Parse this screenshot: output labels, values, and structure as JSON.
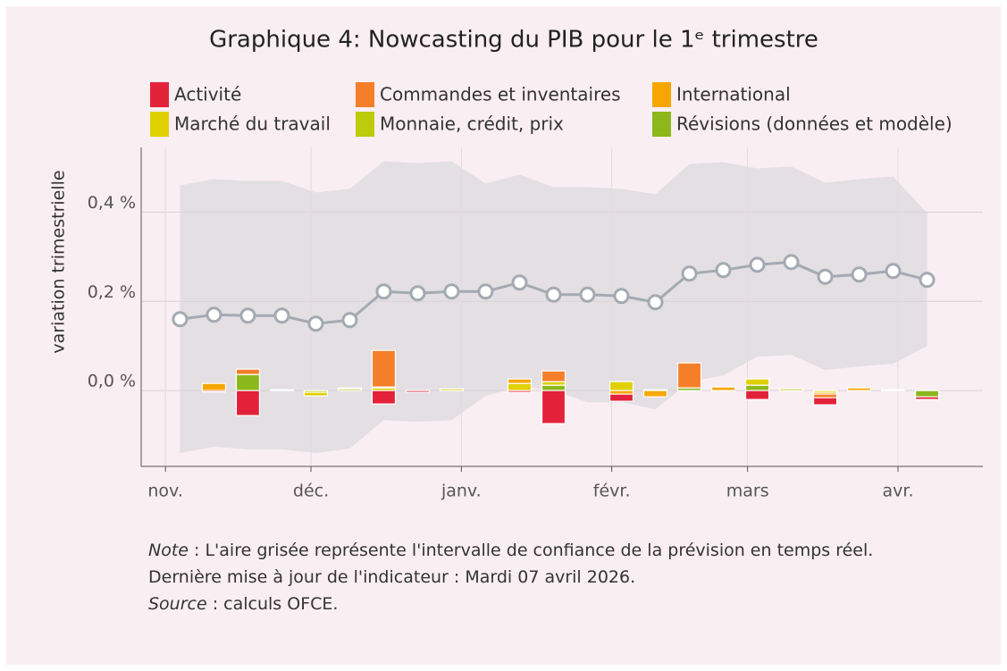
{
  "chart_data": {
    "type": "line",
    "title": "Graphique 4:  Nowcasting du PIB pour le 1ᵉ trimestre",
    "y_label": "variation trimestrielle",
    "x": [
      3,
      10,
      17,
      24,
      31,
      38,
      45,
      52,
      59,
      66,
      73,
      80,
      87,
      94,
      101,
      108,
      115,
      122,
      129,
      136,
      143,
      150,
      157
    ],
    "xlim": [
      -5,
      168.5
    ],
    "xticks": [
      {
        "value": 0,
        "label": "nov."
      },
      {
        "value": 30,
        "label": "déc."
      },
      {
        "value": 61,
        "label": "janv."
      },
      {
        "value": 92,
        "label": "févr."
      },
      {
        "value": 120,
        "label": "mars"
      },
      {
        "value": 151,
        "label": "avr."
      }
    ],
    "ylim": [
      -0.17,
      0.545
    ],
    "yticks": [
      {
        "value": 0,
        "label": "0,0 %"
      },
      {
        "value": 0.2,
        "label": "0,2 %"
      },
      {
        "value": 0.4,
        "label": "0,4 %"
      }
    ],
    "grid": true,
    "line": {
      "color": "#a3aab2",
      "values": [
        0.16,
        0.17,
        0.168,
        0.168,
        0.15,
        0.158,
        0.222,
        0.218,
        0.222,
        0.222,
        0.242,
        0.215,
        0.215,
        0.212,
        0.198,
        0.262,
        0.27,
        0.282,
        0.288,
        0.255,
        0.26,
        0.268,
        0.248
      ]
    },
    "band": {
      "color": "#e3dfe3",
      "upper": [
        0.46,
        0.474,
        0.47,
        0.47,
        0.444,
        0.452,
        0.514,
        0.51,
        0.514,
        0.464,
        0.484,
        0.456,
        0.456,
        0.452,
        0.44,
        0.508,
        0.512,
        0.498,
        0.502,
        0.466,
        0.474,
        0.48,
        0.398
      ],
      "lower": [
        -0.14,
        -0.126,
        -0.132,
        -0.132,
        -0.14,
        -0.13,
        -0.066,
        -0.07,
        -0.066,
        -0.012,
        0.01,
        0,
        -0.026,
        -0.026,
        -0.042,
        0.02,
        0.034,
        0.076,
        0.08,
        0.046,
        0.054,
        0.06,
        0.1
      ]
    },
    "series": [
      {
        "name": "Activité",
        "color": "#e3223a",
        "values": [
          null,
          -0.003,
          -0.056,
          0,
          0,
          0,
          -0.03,
          -0.004,
          0,
          0,
          -0.004,
          -0.074,
          0,
          -0.016,
          0,
          0,
          0,
          -0.02,
          0,
          -0.016,
          0,
          0,
          -0.006
        ]
      },
      {
        "name": "Commandes et inventaires",
        "color": "#f57f29",
        "values": [
          null,
          0,
          0.012,
          0,
          0,
          0,
          0.082,
          0,
          0,
          0,
          0,
          0.024,
          0,
          0,
          0,
          0.056,
          0,
          0,
          0,
          -0.008,
          0,
          0,
          0
        ]
      },
      {
        "name": "International",
        "color": "#f7a600",
        "values": [
          null,
          0.016,
          0,
          0,
          0,
          0,
          0.002,
          0,
          0,
          0,
          0.01,
          0,
          0,
          -0.008,
          -0.014,
          0,
          0.008,
          0,
          0,
          -0.004,
          0.006,
          0,
          0
        ]
      },
      {
        "name": "Marché du travail",
        "color": "#e0d000",
        "values": [
          null,
          0,
          0,
          0.002,
          -0.008,
          0.002,
          0.006,
          0,
          0.004,
          0,
          0.016,
          0.008,
          0,
          0.02,
          0,
          0,
          0,
          0.014,
          0,
          -0.004,
          0,
          0.002,
          0
        ]
      },
      {
        "name": "Monnaie, crédit, prix",
        "color": "#bccb0a",
        "values": [
          null,
          0,
          0,
          0,
          -0.004,
          0.004,
          0,
          0,
          0,
          0,
          0,
          0,
          0,
          0,
          0.002,
          0,
          0,
          0,
          0.004,
          0,
          0,
          0,
          0
        ]
      },
      {
        "name": "Révisions (données et modèle)",
        "color": "#8db81c",
        "values": [
          null,
          0,
          0.036,
          0,
          0,
          0,
          0,
          0,
          0,
          0,
          0,
          0.012,
          0,
          0,
          0,
          0.006,
          0,
          0.012,
          0,
          0,
          0,
          0,
          -0.014
        ]
      }
    ],
    "notes": [
      {
        "lead": "Note",
        "text": " : L'aire grisée représente l'intervalle de confiance de la prévision en temps réel."
      },
      {
        "text": "Dernière mise à jour de l'indicateur : Mardi 07 avril 2026."
      },
      {
        "lead": "Source",
        "text": " : calculs OFCE."
      }
    ]
  }
}
